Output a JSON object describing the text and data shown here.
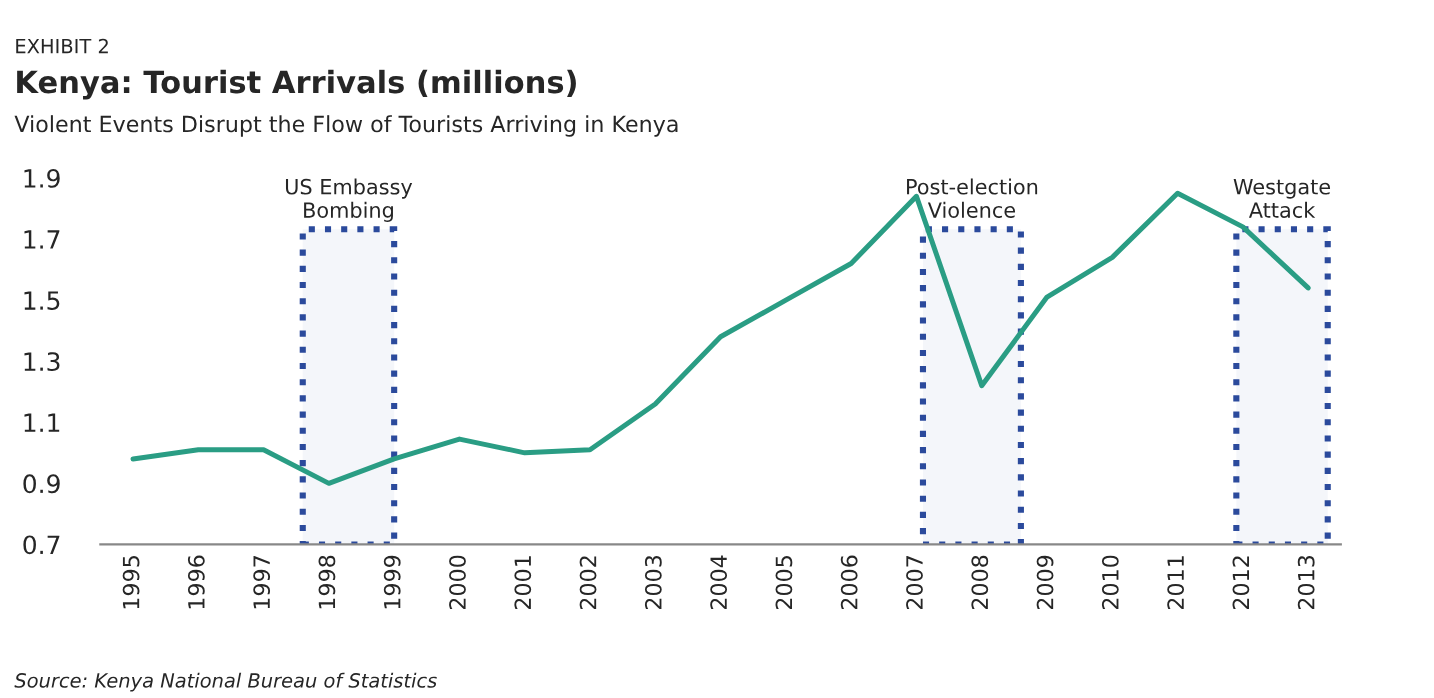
{
  "chart_data": {
    "type": "line",
    "title": "Kenya: Tourist Arrivals (millions)",
    "subtitle": "Violent Events Disrupt the Flow of Tourists Arriving in Kenya",
    "annotations": [
      "EXHIBIT 2",
      "Source: Kenya National Bureau of Statistics"
    ],
    "x": [
      1995,
      1996,
      1997,
      1998,
      1999,
      2000,
      2001,
      2002,
      2003,
      2004,
      2005,
      2006,
      2007,
      2008,
      2009,
      2010,
      2011,
      2012,
      2013
    ],
    "series": [
      {
        "color": "#2a9d84",
        "values": [
          0.98,
          1.01,
          1.01,
          0.9,
          0.98,
          1.045,
          1.0,
          1.01,
          1.16,
          1.38,
          1.5,
          1.62,
          1.84,
          1.22,
          1.51,
          1.64,
          1.85,
          1.74,
          1.54
        ]
      }
    ],
    "xlim": [
      1994.5,
      2013.5
    ],
    "xticks": [
      1995,
      1996,
      1997,
      1998,
      1999,
      2000,
      2001,
      2002,
      2003,
      2004,
      2005,
      2006,
      2007,
      2008,
      2009,
      2010,
      2011,
      2012,
      2013
    ],
    "ylim": [
      0.7,
      1.9
    ],
    "yticks": [
      0.7,
      0.9,
      1.1,
      1.3,
      1.5,
      1.7,
      1.9
    ],
    "bands": [
      {
        "axis": "x",
        "from": 1997.6,
        "to": 1999.0,
        "label": "US Embassy\nBombing",
        "color": "#2b4a9c"
      },
      {
        "axis": "x",
        "from": 2007.1,
        "to": 2008.6,
        "label": "Post-election\nViolence",
        "color": "#2b4a9c"
      },
      {
        "axis": "x",
        "from": 2011.9,
        "to": 2013.3,
        "label": "Westgate\nAttack",
        "color": "#2b4a9c"
      }
    ],
    "grid": false,
    "legend": false,
    "marker": "none",
    "line_style": "solid"
  }
}
